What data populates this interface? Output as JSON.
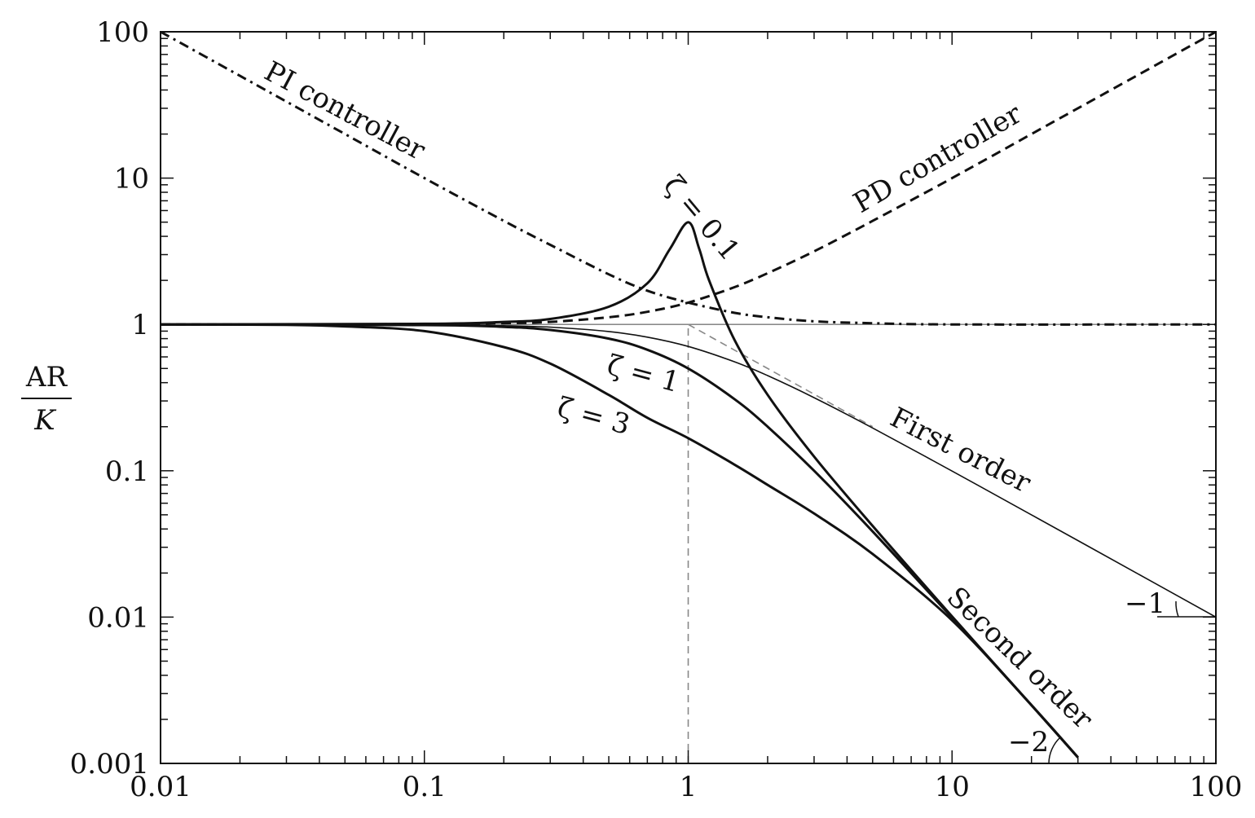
{
  "chart_data": {
    "type": "line",
    "x_scale": "log",
    "y_scale": "log",
    "xlim": [
      0.01,
      100
    ],
    "ylim": [
      0.001,
      100
    ],
    "grid": false,
    "x_ticks": [
      {
        "value": 0.01,
        "label": "0.01"
      },
      {
        "value": 0.1,
        "label": "0.1"
      },
      {
        "value": 1,
        "label": "1"
      },
      {
        "value": 10,
        "label": "10"
      },
      {
        "value": 100,
        "label": "100"
      }
    ],
    "y_ticks": [
      {
        "value": 0.001,
        "label": "0.001"
      },
      {
        "value": 0.01,
        "label": "0.01"
      },
      {
        "value": 0.1,
        "label": "0.1"
      },
      {
        "value": 1,
        "label": "1"
      },
      {
        "value": 10,
        "label": "10"
      },
      {
        "value": 100,
        "label": "100"
      }
    ],
    "ylabel_num": "AR",
    "ylabel_den": "K",
    "series": [
      {
        "name": "PI controller",
        "style": "dashdot",
        "points": [
          [
            0.01,
            100
          ],
          [
            0.02,
            50
          ],
          [
            0.05,
            20
          ],
          [
            0.1,
            10
          ],
          [
            0.2,
            5.1
          ],
          [
            0.3,
            3.5
          ],
          [
            0.5,
            2.2
          ],
          [
            0.7,
            1.7
          ],
          [
            1,
            1.41
          ],
          [
            1.5,
            1.2
          ],
          [
            2,
            1.12
          ],
          [
            3,
            1.05
          ],
          [
            5,
            1.02
          ],
          [
            10,
            1
          ],
          [
            100,
            1
          ]
        ]
      },
      {
        "name": "PD controller",
        "style": "dashed",
        "points": [
          [
            0.01,
            1
          ],
          [
            0.1,
            1.005
          ],
          [
            0.2,
            1.02
          ],
          [
            0.3,
            1.04
          ],
          [
            0.5,
            1.12
          ],
          [
            0.7,
            1.22
          ],
          [
            1,
            1.41
          ],
          [
            1.5,
            1.8
          ],
          [
            2,
            2.24
          ],
          [
            3,
            3.16
          ],
          [
            5,
            5.1
          ],
          [
            10,
            10
          ],
          [
            20,
            20
          ],
          [
            50,
            50
          ],
          [
            100,
            100
          ]
        ]
      },
      {
        "name": "First order",
        "style": "thin",
        "points": [
          [
            0.01,
            1
          ],
          [
            0.1,
            0.995
          ],
          [
            0.2,
            0.98
          ],
          [
            0.3,
            0.958
          ],
          [
            0.5,
            0.894
          ],
          [
            0.7,
            0.819
          ],
          [
            1,
            0.707
          ],
          [
            1.5,
            0.555
          ],
          [
            2,
            0.447
          ],
          [
            3,
            0.316
          ],
          [
            5,
            0.196
          ],
          [
            10,
            0.0995
          ],
          [
            20,
            0.05
          ],
          [
            50,
            0.02
          ],
          [
            100,
            0.01
          ]
        ]
      },
      {
        "name": "ζ = 0.1",
        "style": "solid",
        "points": [
          [
            0.01,
            1
          ],
          [
            0.1,
            1.01
          ],
          [
            0.2,
            1.04
          ],
          [
            0.3,
            1.09
          ],
          [
            0.5,
            1.32
          ],
          [
            0.7,
            1.91
          ],
          [
            0.85,
            3.25
          ],
          [
            1,
            5
          ],
          [
            1.1,
            3.3
          ],
          [
            1.2,
            2.0
          ],
          [
            1.5,
            0.78
          ],
          [
            2,
            0.33
          ],
          [
            3,
            0.125
          ],
          [
            5,
            0.042
          ],
          [
            10,
            0.0101
          ],
          [
            20,
            0.0025
          ],
          [
            30,
            0.0011
          ]
        ]
      },
      {
        "name": "ζ = 1",
        "style": "solid",
        "points": [
          [
            0.01,
            1
          ],
          [
            0.1,
            0.99
          ],
          [
            0.2,
            0.962
          ],
          [
            0.3,
            0.917
          ],
          [
            0.5,
            0.8
          ],
          [
            0.7,
            0.671
          ],
          [
            1,
            0.5
          ],
          [
            1.5,
            0.308
          ],
          [
            2,
            0.2
          ],
          [
            3,
            0.1
          ],
          [
            5,
            0.0385
          ],
          [
            10,
            0.0099
          ],
          [
            20,
            0.0025
          ],
          [
            30,
            0.0011
          ]
        ]
      },
      {
        "name": "ζ = 3",
        "style": "solid",
        "points": [
          [
            0.01,
            1
          ],
          [
            0.03,
            0.992
          ],
          [
            0.05,
            0.97
          ],
          [
            0.1,
            0.9
          ],
          [
            0.2,
            0.7
          ],
          [
            0.3,
            0.54
          ],
          [
            0.5,
            0.33
          ],
          [
            0.7,
            0.23
          ],
          [
            1,
            0.167
          ],
          [
            1.5,
            0.11
          ],
          [
            2,
            0.08
          ],
          [
            3,
            0.051
          ],
          [
            5,
            0.027
          ],
          [
            10,
            0.0095
          ],
          [
            20,
            0.0025
          ],
          [
            30,
            0.0011
          ]
        ]
      }
    ],
    "asymptotes": [
      {
        "style": "thin-gray",
        "points": [
          [
            0.01,
            1
          ],
          [
            100,
            1
          ]
        ]
      },
      {
        "style": "dashed-gray",
        "points": [
          [
            1,
            1
          ],
          [
            5,
            0.2
          ]
        ]
      },
      {
        "style": "dashed-gray",
        "points": [
          [
            1,
            0.001
          ],
          [
            1,
            1
          ]
        ]
      }
    ],
    "annotations": [
      {
        "text": "PI controller"
      },
      {
        "text": "PD controller"
      },
      {
        "text": "ζ = 0.1"
      },
      {
        "text": "ζ = 1"
      },
      {
        "text": "ζ = 3"
      },
      {
        "text": "First order"
      },
      {
        "text": "Second order"
      },
      {
        "text": "−1"
      },
      {
        "text": "−2"
      }
    ]
  }
}
